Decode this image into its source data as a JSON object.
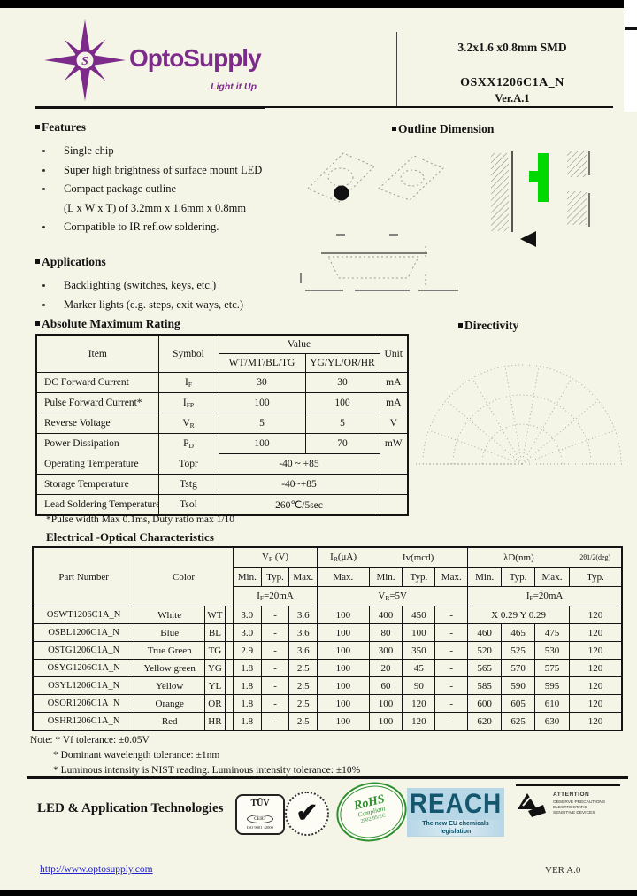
{
  "colors": {
    "purple": "#7d2b8b",
    "led_green": "#00d900",
    "rohs_green": "#2f8f2f",
    "reach_bg": "#b7d6e6",
    "reach_text": "#14566e",
    "link_blue": "#2222cc",
    "page_cream": "#f4f5e6"
  },
  "icons": {
    "check": "✔"
  },
  "header": {
    "brand": "OptoSupply",
    "tagline": "Light it Up",
    "product_size": "3.2x1.6 x0.8mm SMD",
    "part_number": "OSXX1206C1A_N",
    "version": "Ver.A.1"
  },
  "features": {
    "title": "Features",
    "items": [
      {
        "text": "Single chip",
        "bullet": true
      },
      {
        "text": "Super high brightness of surface mount LED",
        "bullet": true
      },
      {
        "text": "Compact package outline",
        "bullet": true
      },
      {
        "text": "(L x W x T) of 3.2mm x 1.6mm x 0.8mm",
        "bullet": false
      },
      {
        "text": "Compatible to IR reflow soldering.",
        "bullet": true
      }
    ]
  },
  "applications": {
    "title": "Applications",
    "items": [
      {
        "text": "Backlighting (switches, keys, etc.)",
        "bullet": true
      },
      {
        "text": "Marker lights (e.g. steps, exit ways, etc.)",
        "bullet": true
      }
    ]
  },
  "outline": {
    "title": "Outline Dimension"
  },
  "directivity": {
    "title": "Directivity"
  },
  "abs_max": {
    "title": "Absolute Maximum Rating",
    "headers": {
      "item": "Item",
      "symbol": "Symbol",
      "value": "Value",
      "group1": "WT/MT/BL/TG",
      "group2": "YG/YL/OR/HR",
      "unit": "Unit"
    },
    "rows": [
      {
        "item": "DC Forward Current",
        "sym": "I",
        "sub": "F",
        "v1": "30",
        "v2": "30",
        "unit": "mA"
      },
      {
        "item": "Pulse Forward Current*",
        "sym": "I",
        "sub": "FP",
        "v1": "100",
        "v2": "100",
        "unit": "mA"
      },
      {
        "item": "Reverse Voltage",
        "sym": "V",
        "sub": "R",
        "v1": "5",
        "v2": "5",
        "unit": "V"
      },
      {
        "item": "Power Dissipation",
        "sym": "P",
        "sub": "D",
        "v1": "100",
        "v2": "70",
        "unit": "mW"
      },
      {
        "item": "Operating Temperature",
        "sym": "Topr",
        "sub": "",
        "merged": "-40 ~ +85",
        "unit": ""
      },
      {
        "item": "Storage Temperature",
        "sym": "Tstg",
        "sub": "",
        "merged": "-40~+85",
        "unit": ""
      },
      {
        "item": "Lead Soldering Temperature",
        "sym": "Tsol",
        "sub": "",
        "merged": "260℃/5sec",
        "unit": ""
      }
    ],
    "footnote": "*Pulse width Max 0.1ms, Duty ratio max 1/10"
  },
  "eo": {
    "title": "Electrical -Optical Characteristics",
    "headers": {
      "part": "Part Number",
      "color": "Color",
      "vf_pre": "V",
      "vf_sub": "F",
      "vf_post": " (V)",
      "ir_pre": "I",
      "ir_sub": "R",
      "ir_post": "(μA)",
      "iv": "Iv(mcd)",
      "ld": "λD(nm)",
      "deg": "2θ1/2(deg)",
      "sub": [
        "Min.",
        "Typ.",
        "Max.",
        "Max.",
        "Min.",
        "Typ.",
        "Max.",
        "Min.",
        "Typ.",
        "Max.",
        "Typ."
      ],
      "cond_vf_pre": "I",
      "cond_vf_sub": "F",
      "cond_vf_post": "=20mA",
      "cond_ir_pre": "V",
      "cond_ir_sub": "R",
      "cond_ir_post": "=5V",
      "cond_ld_pre": "I",
      "cond_ld_sub": "F",
      "cond_ld_post": "=20mA"
    },
    "rows": [
      {
        "pn": "OSWT1206C1A_N",
        "color": "White",
        "code": "WT",
        "vf": [
          "3.0",
          "-",
          "3.6"
        ],
        "ir": "100",
        "iv": [
          "400",
          "450",
          "-"
        ],
        "chroma": "X  0.29 Y  0.29",
        "deg": "120"
      },
      {
        "pn": "OSBL1206C1A_N",
        "color": "Blue",
        "code": "BL",
        "vf": [
          "3.0",
          "-",
          "3.6"
        ],
        "ir": "100",
        "iv": [
          "80",
          "100",
          "-"
        ],
        "ld": [
          "460",
          "465",
          "475"
        ],
        "deg": "120"
      },
      {
        "pn": "OSTG1206C1A_N",
        "color": "True Green",
        "code": "TG",
        "vf": [
          "2.9",
          "-",
          "3.6"
        ],
        "ir": "100",
        "iv": [
          "300",
          "350",
          "-"
        ],
        "ld": [
          "520",
          "525",
          "530"
        ],
        "deg": "120"
      },
      {
        "pn": "OSYG1206C1A_N",
        "color": "Yellow green",
        "code": "YG",
        "vf": [
          "1.8",
          "-",
          "2.5"
        ],
        "ir": "100",
        "iv": [
          "20",
          "45",
          "-"
        ],
        "ld": [
          "565",
          "570",
          "575"
        ],
        "deg": "120"
      },
      {
        "pn": "OSYL1206C1A_N",
        "color": "Yellow",
        "code": "YL",
        "vf": [
          "1.8",
          "-",
          "2.5"
        ],
        "ir": "100",
        "iv": [
          "60",
          "90",
          "-"
        ],
        "ld": [
          "585",
          "590",
          "595"
        ],
        "deg": "120"
      },
      {
        "pn": "OSOR1206C1A_N",
        "color": "Orange",
        "code": "OR",
        "vf": [
          "1.8",
          "-",
          "2.5"
        ],
        "ir": "100",
        "iv": [
          "100",
          "120",
          "-"
        ],
        "ld": [
          "600",
          "605",
          "610"
        ],
        "deg": "120"
      },
      {
        "pn": "OSHR1206C1A_N",
        "color": "Red",
        "code": "HR",
        "vf": [
          "1.8",
          "-",
          "2.5"
        ],
        "ir": "100",
        "iv": [
          "100",
          "120",
          "-"
        ],
        "ld": [
          "620",
          "625",
          "630"
        ],
        "deg": "120"
      }
    ],
    "notes": [
      "Note: * Vf tolerance: ±0.05V",
      "* Dominant wavelength tolerance: ±1nm",
      "* Luminous intensity is NIST reading. Luminous intensity tolerance: ±10%"
    ]
  },
  "footer": {
    "company": "LED & Application Technologies",
    "tuv": {
      "line1": "TÜV",
      "line2": "CERT",
      "line3": "ISO 9001 : 2000"
    },
    "rohs": {
      "main": "RoHS",
      "sub": "Compliant",
      "bottom": "2002/95/EC"
    },
    "reach": {
      "title": "REACH",
      "subtitle": "The new EU chemicals legislation"
    },
    "esd": {
      "title": "ATTENTION",
      "lines": [
        "OBSERVE PRECAUTIONS",
        "ELECTROSTATIC",
        "SENSITIVE DEVICES"
      ]
    },
    "link": "http://www.optosupply.com",
    "version": "VER A.0"
  }
}
